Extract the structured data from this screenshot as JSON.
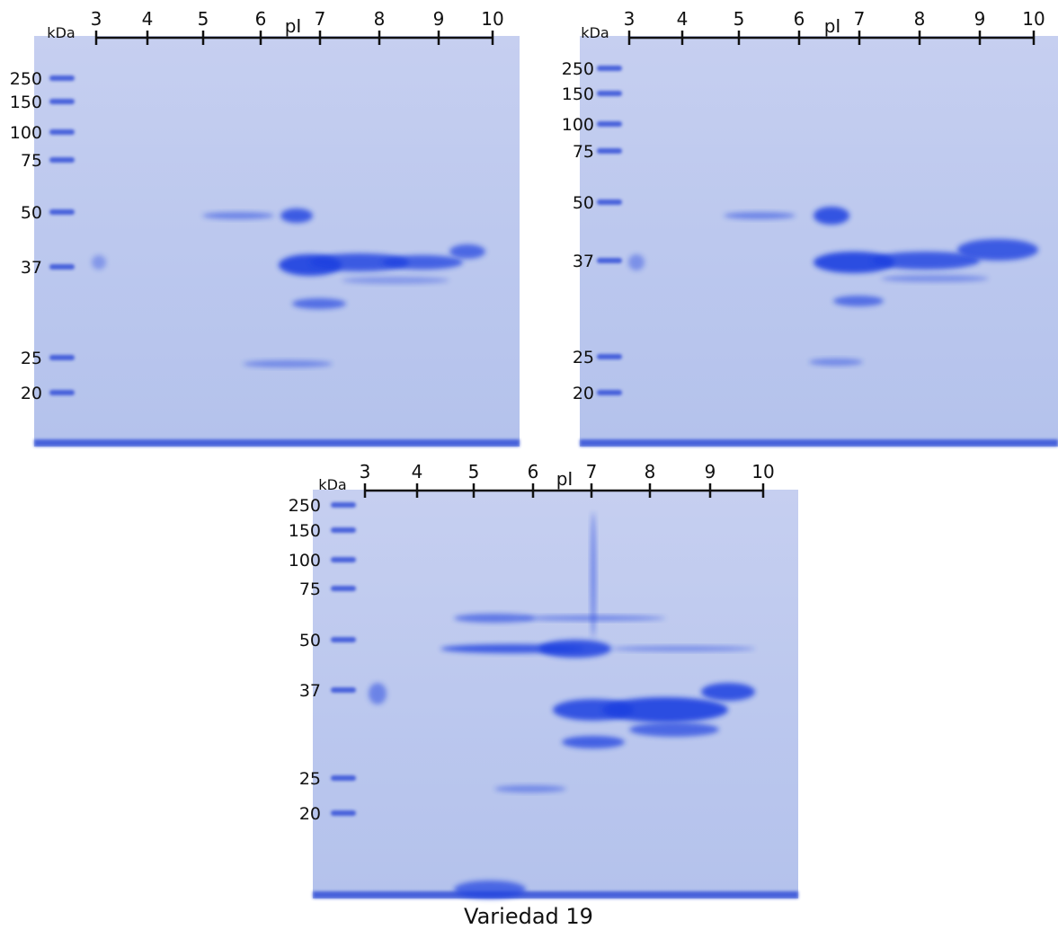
{
  "panels": [
    {
      "kda_label": "kDa",
      "pi_label": "pI",
      "pi_ticks": [
        "3",
        "4",
        "5",
        "6",
        "7",
        "8",
        "9",
        "10"
      ],
      "mw_labels": [
        "250",
        "150",
        "100",
        "75",
        "50",
        "37",
        "25",
        "20"
      ]
    },
    {
      "kda_label": "kDa",
      "pi_label": "pI",
      "pi_ticks": [
        "3",
        "4",
        "5",
        "6",
        "7",
        "8",
        "9",
        "10"
      ],
      "mw_labels": [
        "250",
        "150",
        "100",
        "75",
        "50",
        "37",
        "25",
        "20"
      ]
    },
    {
      "kda_label": "kDa",
      "pi_label": "pI",
      "pi_ticks": [
        "3",
        "4",
        "5",
        "6",
        "7",
        "8",
        "9",
        "10"
      ],
      "mw_labels": [
        "250",
        "150",
        "100",
        "75",
        "50",
        "37",
        "25",
        "20"
      ]
    }
  ],
  "caption": "Variedad 19"
}
